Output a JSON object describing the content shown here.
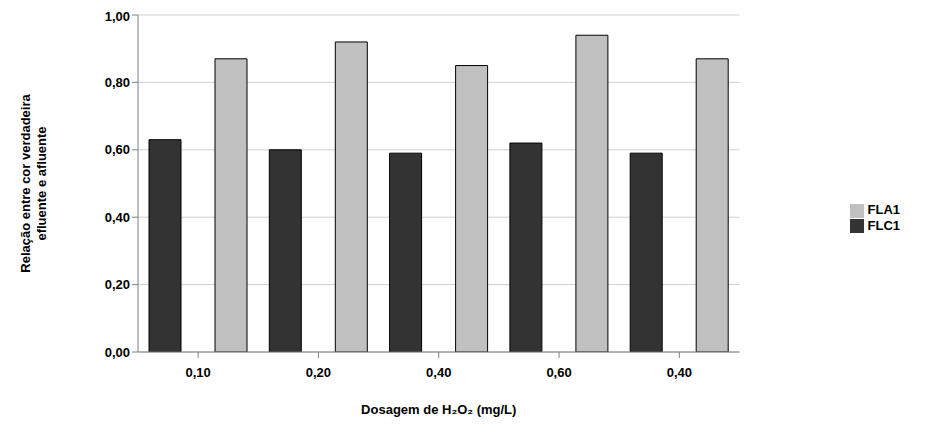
{
  "chart_data": {
    "type": "bar",
    "x_label": "Dosagem de H₂O₂ (mg/L)",
    "y_label": "Relação entre cor verdadeira\nefluente e afluente",
    "categories": [
      "0,10",
      "0,20",
      "0,40",
      "0,60",
      "0,40"
    ],
    "series": [
      {
        "name": "FLC1",
        "color": "#333333",
        "values": [
          0.63,
          0.6,
          0.59,
          0.62,
          0.59
        ]
      },
      {
        "name": "FLA1",
        "color": "#c0c0c0",
        "values": [
          0.87,
          0.92,
          0.85,
          0.94,
          0.87
        ]
      }
    ],
    "ylim": [
      0,
      1
    ],
    "yticks": [
      {
        "value": 0,
        "label": "0,00"
      },
      {
        "value": 0.2,
        "label": "0,20"
      },
      {
        "value": 0.4,
        "label": "0,40"
      },
      {
        "value": 0.6,
        "label": "0,60"
      },
      {
        "value": 0.8,
        "label": "0,80"
      },
      {
        "value": 1,
        "label": "1,00"
      }
    ],
    "grid": true,
    "legend": "right"
  }
}
